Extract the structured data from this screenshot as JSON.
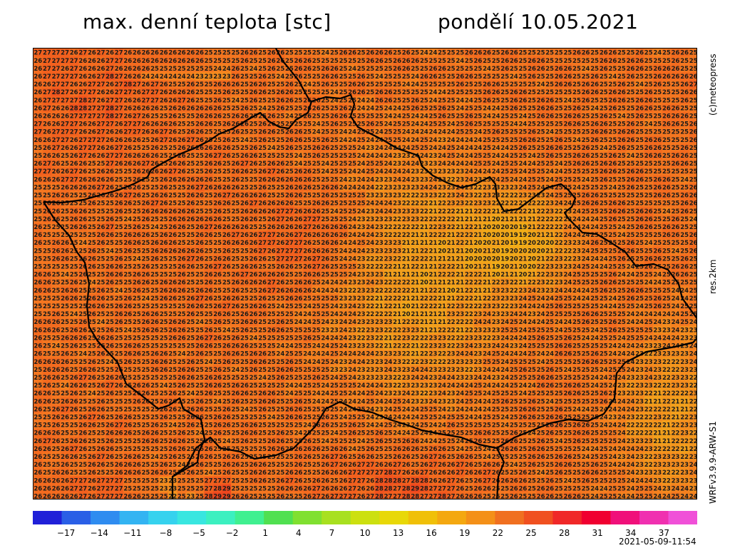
{
  "header": {
    "title": "max. denní teplota [stc]",
    "date": "pondělí 10.05.2021"
  },
  "side_labels": {
    "credit": "(c)meteopress",
    "resolution": "res.2km",
    "model": "WRFv3.9.9-ARW-S1"
  },
  "timestamp": "2021-05-09-11:54",
  "colorbar": {
    "min": -20,
    "max": 40,
    "tick_values": [
      -17,
      -14,
      -11,
      -8,
      -5,
      -2,
      1,
      4,
      7,
      10,
      13,
      16,
      19,
      22,
      25,
      28,
      31,
      34,
      37
    ],
    "colors": [
      "#2020d8",
      "#2a5fe6",
      "#2f8cf0",
      "#33b4f2",
      "#36d2ee",
      "#39e6e0",
      "#3cf0c0",
      "#40f090",
      "#50e050",
      "#80e030",
      "#a8e020",
      "#cce010",
      "#e8d808",
      "#f0c008",
      "#f4a810",
      "#f49018",
      "#f07020",
      "#f05020",
      "#f02828",
      "#f00030",
      "#f0107a",
      "#f030b0",
      "#f050d8"
    ]
  },
  "chart_data": {
    "type": "heatmap",
    "title": "max. denní teplota [stc]",
    "subtitle": "pondělí 10.05.2021",
    "unit": "stc",
    "value_range_shown": [
      15,
      29
    ],
    "sample_rows_top": [
      [
        27,
        27,
        27,
        27,
        26,
        27,
        26,
        27,
        26,
        27,
        26,
        26,
        26,
        26,
        26,
        26,
        26,
        26,
        26,
        25,
        25,
        25
      ],
      [
        26,
        27,
        27,
        27,
        27,
        26,
        26,
        26,
        27,
        27,
        26,
        26,
        26,
        26,
        26,
        26,
        26,
        26,
        26,
        25,
        25,
        25
      ],
      [
        26,
        27,
        27,
        26,
        27,
        26,
        26,
        26,
        27,
        26,
        26,
        26,
        26,
        25,
        25,
        25,
        25,
        25,
        25,
        25,
        24,
        24
      ],
      [
        26,
        27,
        27,
        27,
        27,
        26,
        26,
        27,
        28,
        27,
        26,
        26,
        24,
        24,
        24,
        24,
        24,
        24,
        23,
        23,
        23,
        23
      ]
    ],
    "sample_rows_bottom": [
      [
        26,
        26,
        26,
        26,
        27,
        27,
        26,
        27,
        27,
        27,
        25,
        25,
        25,
        25,
        23,
        23,
        25,
        25,
        25,
        27,
        27,
        27
      ],
      [
        26,
        26,
        26,
        26,
        27,
        27,
        26,
        27,
        27,
        27,
        25,
        25,
        25,
        25,
        23,
        23,
        25,
        25,
        25,
        27,
        28,
        29
      ],
      [
        26,
        26,
        26,
        26,
        26,
        27,
        26,
        27,
        27,
        27,
        26,
        26,
        25,
        25,
        25,
        22,
        25,
        23,
        25,
        28,
        29,
        29
      ]
    ]
  }
}
